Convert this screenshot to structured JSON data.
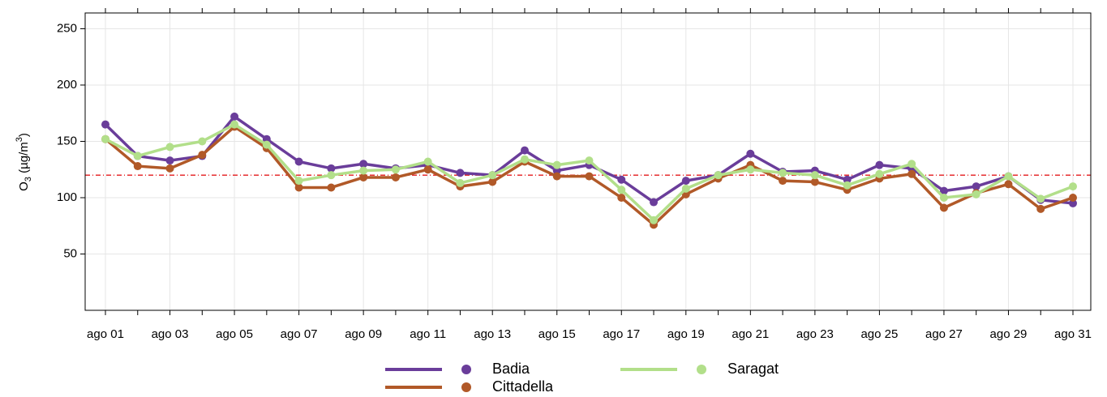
{
  "chart_data": {
    "type": "line",
    "ylabel_parts": [
      "O",
      "3",
      " (µg/m",
      "3",
      ")"
    ],
    "categories": [
      "ago 01",
      null,
      "ago 03",
      null,
      "ago 05",
      null,
      "ago 07",
      null,
      "ago 09",
      null,
      "ago 11",
      null,
      "ago 13",
      null,
      "ago 15",
      null,
      "ago 17",
      null,
      "ago 19",
      null,
      "ago 21",
      null,
      "ago 23",
      null,
      "ago 25",
      null,
      "ago 27",
      null,
      "ago 29",
      null,
      "ago 31"
    ],
    "series": [
      {
        "name": "Badia",
        "color": "#6a3d9a",
        "values": [
          165,
          137,
          133,
          137,
          172,
          152,
          132,
          126,
          130,
          126,
          129,
          122,
          120,
          142,
          124,
          129,
          116,
          96,
          115,
          120,
          139,
          123,
          124,
          116,
          129,
          126,
          106,
          110,
          119,
          98,
          95
        ]
      },
      {
        "name": "Cittadella",
        "color": "#b15928",
        "values": [
          152,
          128,
          126,
          138,
          163,
          144,
          109,
          109,
          118,
          118,
          125,
          110,
          114,
          132,
          119,
          119,
          100,
          76,
          103,
          117,
          129,
          115,
          114,
          107,
          117,
          121,
          91,
          104,
          112,
          90,
          100
        ]
      },
      {
        "name": "Saragat",
        "color": "#b2df8a",
        "values": [
          152,
          137,
          145,
          150,
          165,
          147,
          115,
          120,
          124,
          125,
          132,
          113,
          120,
          134,
          129,
          133,
          107,
          80,
          108,
          120,
          125,
          122,
          120,
          111,
          121,
          130,
          100,
          103,
          119,
          99,
          110
        ]
      }
    ],
    "hline": {
      "value": 120,
      "color": "#e41a1c"
    },
    "ylim": [
      0,
      264
    ],
    "yticks": [
      50,
      100,
      150,
      200,
      250
    ],
    "grid": true,
    "legend": "bottom"
  }
}
